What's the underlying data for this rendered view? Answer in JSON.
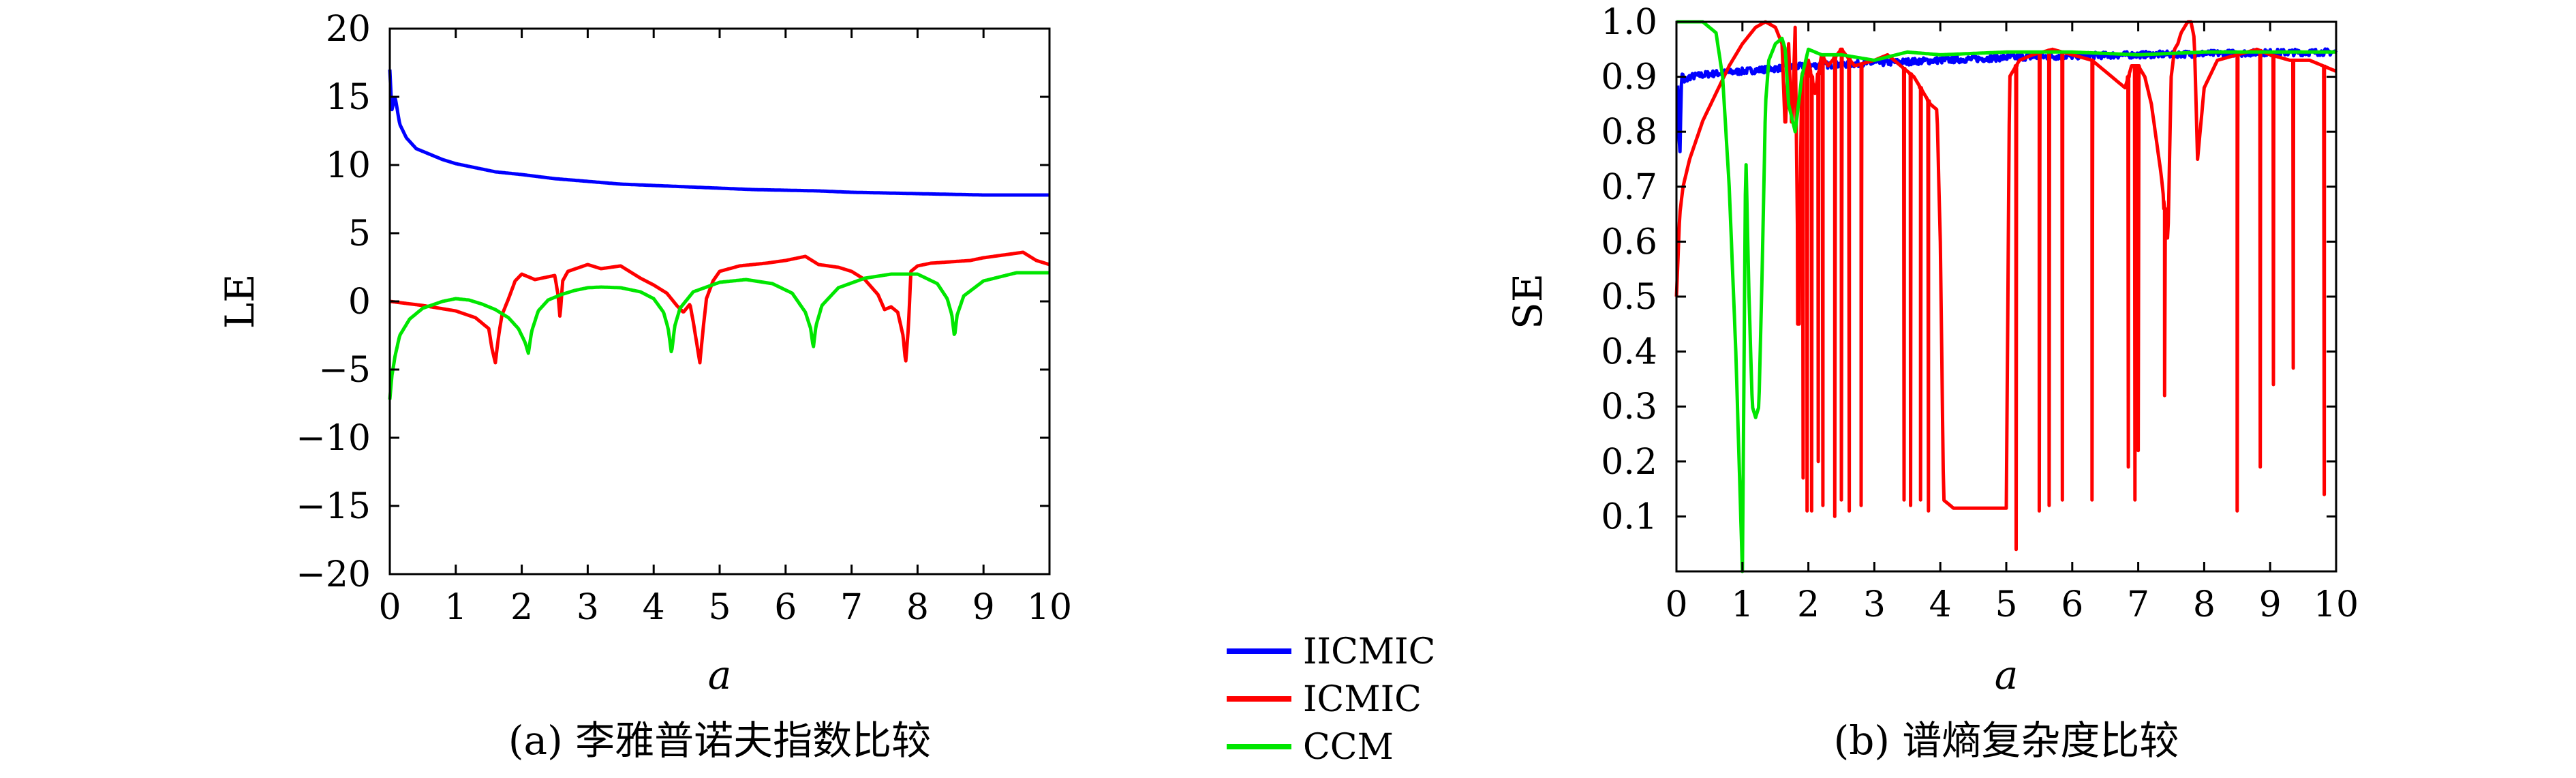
{
  "chart_data": [
    {
      "type": "line",
      "caption": "(a) 李雅普诺夫指数比较",
      "xlabel": "a",
      "ylabel": "LE",
      "xlim": [
        0,
        10
      ],
      "ylim": [
        -20,
        20
      ],
      "xticks": [
        0,
        1,
        2,
        3,
        4,
        5,
        6,
        7,
        8,
        9,
        10
      ],
      "yticks": [
        20,
        15,
        10,
        5,
        0,
        -5,
        -10,
        -15,
        -20
      ],
      "ytick_labels": [
        "20",
        "15",
        "10",
        "5",
        "0",
        "−5",
        "−10",
        "−15",
        "−20"
      ],
      "grid": false,
      "series": [
        {
          "name": "IICMIC",
          "color": "#0000ff",
          "x": [
            0,
            0.03,
            0.08,
            0.15,
            0.25,
            0.4,
            0.6,
            0.8,
            1,
            1.3,
            1.6,
            2,
            2.5,
            3,
            3.5,
            4,
            4.5,
            5,
            5.5,
            6,
            6.5,
            7,
            7.5,
            8,
            8.5,
            9,
            9.5,
            10
          ],
          "y": [
            17,
            14,
            15,
            13,
            12,
            11.2,
            10.8,
            10.4,
            10.1,
            9.8,
            9.5,
            9.3,
            9.0,
            8.8,
            8.6,
            8.5,
            8.4,
            8.3,
            8.2,
            8.15,
            8.1,
            8.0,
            7.95,
            7.9,
            7.85,
            7.8,
            7.8,
            7.8
          ]
        },
        {
          "name": "ICMIC",
          "color": "#ff0000",
          "x": [
            0,
            0.5,
            1,
            1.3,
            1.5,
            1.55,
            1.6,
            1.65,
            1.7,
            1.8,
            1.9,
            2,
            2.2,
            2.5,
            2.55,
            2.58,
            2.62,
            2.7,
            3,
            3.2,
            3.5,
            3.8,
            4,
            4.2,
            4.35,
            4.45,
            4.55,
            4.6,
            4.7,
            4.75,
            4.8,
            4.9,
            5,
            5.3,
            5.7,
            6,
            6.3,
            6.5,
            6.8,
            7,
            7.2,
            7.4,
            7.5,
            7.6,
            7.7,
            7.78,
            7.82,
            7.86,
            7.9,
            8,
            8.2,
            8.5,
            8.8,
            9,
            9.3,
            9.6,
            9.8,
            10
          ],
          "y": [
            0,
            -0.3,
            -0.7,
            -1.2,
            -2.0,
            -3.5,
            -4.5,
            -2.5,
            -1.0,
            0.2,
            1.5,
            2.0,
            1.6,
            1.9,
            0.5,
            -1.2,
            1.5,
            2.2,
            2.7,
            2.4,
            2.6,
            1.7,
            1.2,
            0.6,
            -0.3,
            -0.8,
            -0.2,
            -1.5,
            -4.5,
            -2.0,
            0.2,
            1.5,
            2.2,
            2.6,
            2.8,
            3.0,
            3.3,
            2.7,
            2.5,
            2.2,
            1.6,
            0.5,
            -0.6,
            -0.4,
            -0.8,
            -2.5,
            -4.5,
            -2.0,
            2.2,
            2.6,
            2.8,
            2.9,
            3.0,
            3.2,
            3.4,
            3.6,
            3.0,
            2.7
          ]
        },
        {
          "name": "CCM",
          "color": "#00e600",
          "x": [
            0,
            0.03,
            0.08,
            0.15,
            0.3,
            0.5,
            0.8,
            1,
            1.2,
            1.4,
            1.6,
            1.8,
            1.95,
            2.05,
            2.1,
            2.15,
            2.25,
            2.4,
            2.6,
            2.8,
            3,
            3.2,
            3.5,
            3.8,
            4,
            4.15,
            4.22,
            4.27,
            4.32,
            4.4,
            4.6,
            5,
            5.4,
            5.8,
            6.1,
            6.3,
            6.38,
            6.42,
            6.46,
            6.55,
            6.8,
            7.2,
            7.6,
            8,
            8.3,
            8.45,
            8.52,
            8.56,
            8.6,
            8.7,
            9,
            9.5,
            10
          ],
          "y": [
            -7.2,
            -5.5,
            -4.0,
            -2.5,
            -1.3,
            -0.5,
            0,
            0.2,
            0.1,
            -0.2,
            -0.6,
            -1.2,
            -2.0,
            -3.0,
            -3.8,
            -2.2,
            -0.7,
            0.1,
            0.5,
            0.8,
            1.0,
            1.05,
            1.0,
            0.7,
            0.2,
            -0.8,
            -2.0,
            -3.8,
            -1.8,
            -0.5,
            0.7,
            1.4,
            1.6,
            1.3,
            0.6,
            -0.8,
            -2.0,
            -3.4,
            -1.8,
            -0.3,
            1.0,
            1.7,
            2.0,
            2.0,
            1.3,
            0.2,
            -1.0,
            -2.6,
            -1.0,
            0.4,
            1.5,
            2.1,
            2.1
          ]
        }
      ]
    },
    {
      "type": "line",
      "caption": "(b) 谱熵复杂度比较",
      "xlabel": "a",
      "ylabel": "SE",
      "xlim": [
        0,
        10
      ],
      "ylim": [
        0,
        1.0
      ],
      "xticks": [
        0,
        1,
        2,
        3,
        4,
        5,
        6,
        7,
        8,
        9,
        10
      ],
      "yticks": [
        1.0,
        0.9,
        0.8,
        0.7,
        0.6,
        0.5,
        0.4,
        0.3,
        0.2,
        0.1
      ],
      "ytick_labels": [
        "1.0",
        "0.9",
        "0.8",
        "0.7",
        "0.6",
        "0.5",
        "0.4",
        "0.3",
        "0.2",
        "0.1"
      ],
      "grid": false,
      "series": [
        {
          "name": "IICMIC",
          "color": "#0000ff",
          "x": [
            0.02,
            0.05,
            0.08,
            0.12,
            0.2,
            0.5,
            1,
            2,
            3,
            4,
            5,
            6,
            7,
            8,
            9,
            10
          ],
          "y": [
            0.89,
            0.75,
            0.91,
            0.89,
            0.9,
            0.905,
            0.91,
            0.92,
            0.925,
            0.93,
            0.935,
            0.938,
            0.94,
            0.942,
            0.944,
            0.945
          ],
          "noise": 0.006
        },
        {
          "name": "ICMIC",
          "color": "#ff0000",
          "x": [
            0,
            0.05,
            0.1,
            0.2,
            0.4,
            0.6,
            0.8,
            1.0,
            1.2,
            1.35,
            1.5,
            1.6,
            1.65,
            1.7,
            1.75,
            1.8,
            1.85,
            1.9,
            2.0,
            2.1,
            2.2,
            2.3,
            2.5,
            2.7,
            3.0,
            3.2,
            3.4,
            3.6,
            3.75,
            3.85,
            3.95,
            4.0,
            4.05,
            4.2,
            4.5,
            4.9,
            5.0,
            5.05,
            5.2,
            5.4,
            5.7,
            6.0,
            6.3,
            6.6,
            6.8,
            6.9,
            7.0,
            7.1,
            7.2,
            7.35,
            7.45,
            7.5,
            7.55,
            7.6,
            7.65,
            7.7,
            7.75,
            7.8,
            7.85,
            7.9,
            8.0,
            8.2,
            8.5,
            8.8,
            9.0,
            9.3,
            9.6,
            9.8,
            10
          ],
          "y": [
            0.5,
            0.65,
            0.7,
            0.75,
            0.82,
            0.87,
            0.92,
            0.96,
            0.99,
            1.0,
            0.99,
            0.96,
            0.8,
            0.96,
            0.8,
            0.99,
            0.45,
            0.9,
            0.93,
            0.87,
            0.94,
            0.92,
            0.95,
            0.92,
            0.93,
            0.94,
            0.92,
            0.9,
            0.87,
            0.85,
            0.84,
            0.6,
            0.13,
            0.115,
            0.115,
            0.115,
            0.115,
            0.9,
            0.93,
            0.94,
            0.95,
            0.94,
            0.93,
            0.9,
            0.88,
            0.92,
            0.92,
            0.9,
            0.85,
            0.72,
            0.6,
            0.9,
            0.95,
            0.96,
            0.98,
            0.99,
            1.0,
            1.0,
            0.97,
            0.75,
            0.88,
            0.93,
            0.94,
            0.95,
            0.94,
            0.93,
            0.93,
            0.92,
            0.91
          ],
          "dips": [
            [
              1.85,
              0.45
            ],
            [
              1.92,
              0.17
            ],
            [
              1.98,
              0.11
            ],
            [
              2.05,
              0.11
            ],
            [
              2.15,
              0.2
            ],
            [
              2.22,
              0.12
            ],
            [
              2.4,
              0.1
            ],
            [
              2.5,
              0.13
            ],
            [
              2.62,
              0.11
            ],
            [
              2.8,
              0.12
            ],
            [
              3.45,
              0.13
            ],
            [
              3.55,
              0.12
            ],
            [
              3.7,
              0.13
            ],
            [
              3.82,
              0.11
            ],
            [
              5.15,
              0.04
            ],
            [
              5.5,
              0.11
            ],
            [
              5.65,
              0.12
            ],
            [
              5.85,
              0.13
            ],
            [
              6.3,
              0.13
            ],
            [
              6.85,
              0.19
            ],
            [
              6.95,
              0.13
            ],
            [
              7.0,
              0.22
            ],
            [
              7.4,
              0.32
            ],
            [
              8.5,
              0.11
            ],
            [
              8.85,
              0.19
            ],
            [
              9.05,
              0.34
            ],
            [
              9.35,
              0.37
            ],
            [
              9.82,
              0.14
            ]
          ]
        },
        {
          "name": "CCM",
          "color": "#00e600",
          "x": [
            0,
            0.2,
            0.4,
            0.6,
            0.7,
            0.8,
            0.9,
            0.95,
            1.0,
            1.05,
            1.1,
            1.15,
            1.2,
            1.25,
            1.3,
            1.35,
            1.4,
            1.5,
            1.6,
            1.65,
            1.7,
            1.8,
            1.9,
            2.0,
            2.2,
            2.5,
            3,
            3.5,
            4,
            5,
            6,
            7,
            8,
            9,
            10
          ],
          "y": [
            1.0,
            1.0,
            1.0,
            0.98,
            0.9,
            0.7,
            0.4,
            0.2,
            0.0,
            0.77,
            0.5,
            0.3,
            0.28,
            0.3,
            0.55,
            0.85,
            0.93,
            0.96,
            0.97,
            0.95,
            0.85,
            0.8,
            0.9,
            0.95,
            0.94,
            0.94,
            0.93,
            0.945,
            0.94,
            0.945,
            0.945,
            0.94,
            0.945,
            0.945,
            0.945
          ]
        }
      ]
    }
  ]
}
